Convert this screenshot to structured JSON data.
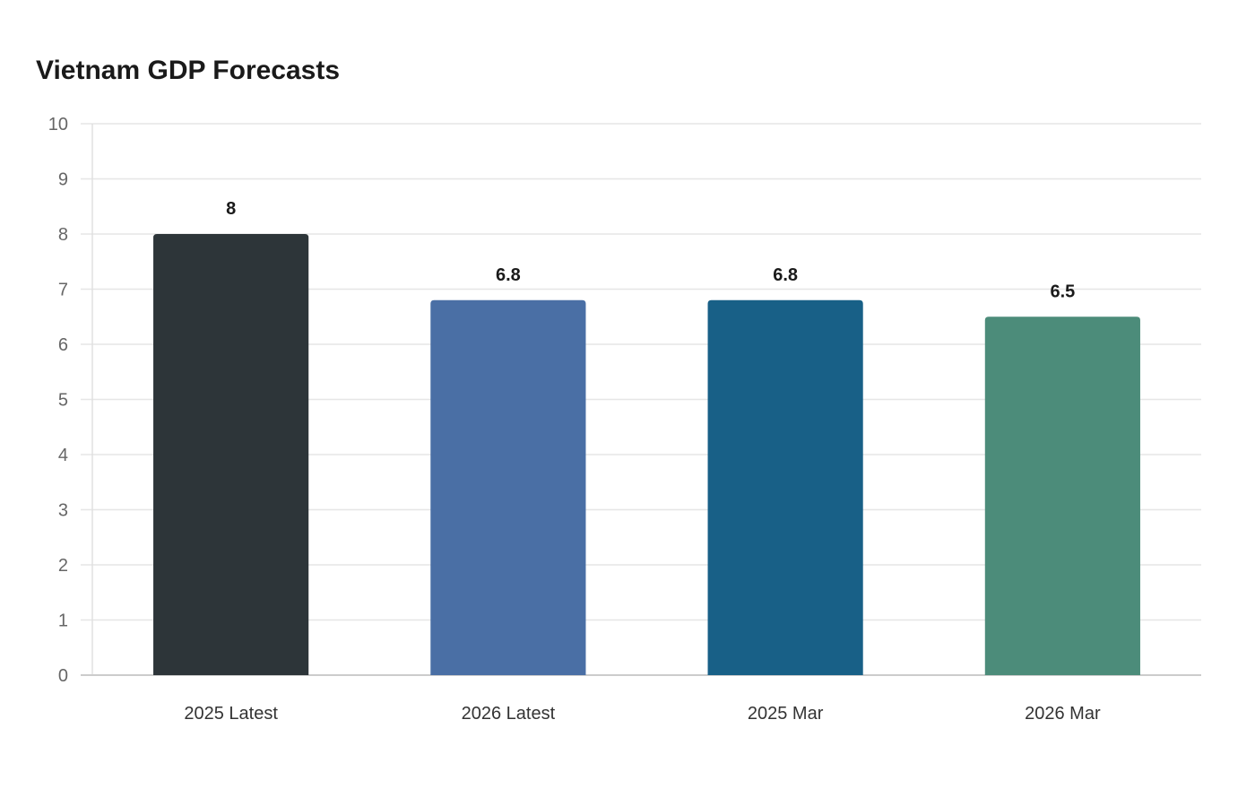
{
  "chart_data": {
    "type": "bar",
    "title": "Vietnam GDP Forecasts",
    "xlabel": "",
    "ylabel": "",
    "categories": [
      "2025 Latest",
      "2026 Latest",
      "2025 Mar",
      "2026 Mar"
    ],
    "values": [
      8,
      6.8,
      6.8,
      6.5
    ],
    "data_labels": [
      "8",
      "6.8",
      "6.8",
      "6.5"
    ],
    "colors": [
      "#2d3539",
      "#4a6fa5",
      "#186087",
      "#4c8c7a"
    ],
    "ylim": [
      0,
      10
    ],
    "yticks": [
      0,
      1,
      2,
      3,
      4,
      5,
      6,
      7,
      8,
      9,
      10
    ],
    "grid": true,
    "legend": "none"
  }
}
